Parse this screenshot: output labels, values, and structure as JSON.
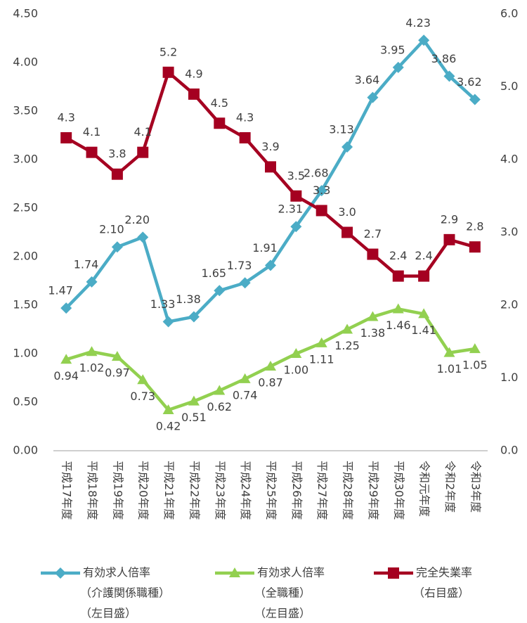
{
  "chart_data": {
    "type": "line",
    "categories": [
      "平成17年度",
      "平成18年度",
      "平成19年度",
      "平成20年度",
      "平成21年度",
      "平成22年度",
      "平成23年度",
      "平成24年度",
      "平成25年度",
      "平成26年度",
      "平成27年度",
      "平成28年度",
      "平成29年度",
      "平成30年度",
      "令和元年度",
      "令和2年度",
      "令和3年度"
    ],
    "ylim": [
      0,
      4.5
    ],
    "yticks": [
      {
        "value": 0,
        "label": "0.00"
      },
      {
        "value": 0.5,
        "label": "0.50"
      },
      {
        "value": 1,
        "label": "1.00"
      },
      {
        "value": 1.5,
        "label": "1.50"
      },
      {
        "value": 2,
        "label": "2.00"
      },
      {
        "value": 2.5,
        "label": "2.50"
      },
      {
        "value": 3,
        "label": "3.00"
      },
      {
        "value": 3.5,
        "label": "3.50"
      },
      {
        "value": 4,
        "label": "4.00"
      },
      {
        "value": 4.5,
        "label": "4.50"
      }
    ],
    "y2lim": [
      0,
      6
    ],
    "y2ticks": [
      {
        "value": 0,
        "label": "0.0"
      },
      {
        "value": 1,
        "label": "1.0"
      },
      {
        "value": 2,
        "label": "2.0"
      },
      {
        "value": 3,
        "label": "3.0"
      },
      {
        "value": 4,
        "label": "4.0"
      },
      {
        "value": 5,
        "label": "5.0"
      },
      {
        "value": 6,
        "label": "6.0"
      }
    ],
    "grid": false,
    "legend": "bottom",
    "series": [
      {
        "name": [
          "有効求人倍率",
          "（介護関係職種）",
          "（左目盛）"
        ],
        "color": "#4bacc6",
        "marker": "diamond",
        "values": [
          1.47,
          1.74,
          2.1,
          2.2,
          1.33,
          1.38,
          1.65,
          1.73,
          1.91,
          2.31,
          2.68,
          3.13,
          3.64,
          3.95,
          4.23,
          3.86,
          3.62
        ],
        "value_labels": [
          "1.47",
          "1.74",
          "2.10",
          "2.20",
          "1.33",
          "1.38",
          "1.65",
          "1.73",
          "1.91",
          "2.31",
          "2.68",
          "3.13",
          "3.64",
          "3.95",
          "4.23",
          "3.86",
          "3.62"
        ]
      },
      {
        "name": [
          "有効求人倍率",
          "（全職種）",
          "（左目盛）"
        ],
        "color": "#92d050",
        "marker": "triangle",
        "values": [
          0.94,
          1.02,
          0.97,
          0.73,
          0.42,
          0.51,
          0.62,
          0.74,
          0.87,
          1,
          1.11,
          1.25,
          1.38,
          1.46,
          1.41,
          1.01,
          1.05
        ],
        "value_labels": [
          "0.94",
          "1.02",
          "0.97",
          "0.73",
          "0.42",
          "0.51",
          "0.62",
          "0.74",
          "0.87",
          "1.00",
          "1.11",
          "1.25",
          "1.38",
          "1.46",
          "1.41",
          "1.01",
          "1.05"
        ]
      },
      {
        "name": [
          "完全失業率",
          "（右目盛）"
        ],
        "color": "#a50021",
        "marker": "square",
        "axis": "y2",
        "values": [
          4.3,
          4.1,
          3.8,
          4.1,
          5.2,
          4.9,
          4.5,
          4.3,
          3.9,
          3.5,
          3.3,
          3.0,
          2.7,
          2.4,
          2.4,
          2.9,
          2.8
        ],
        "value_labels": [
          "4.3",
          "4.1",
          "3.8",
          "4.1",
          "5.2",
          "4.9",
          "4.5",
          "4.3",
          "3.9",
          "3.5",
          "3.3",
          "3.0",
          "2.7",
          "2.4",
          "2.4",
          "2.9",
          "2.8"
        ]
      }
    ]
  }
}
